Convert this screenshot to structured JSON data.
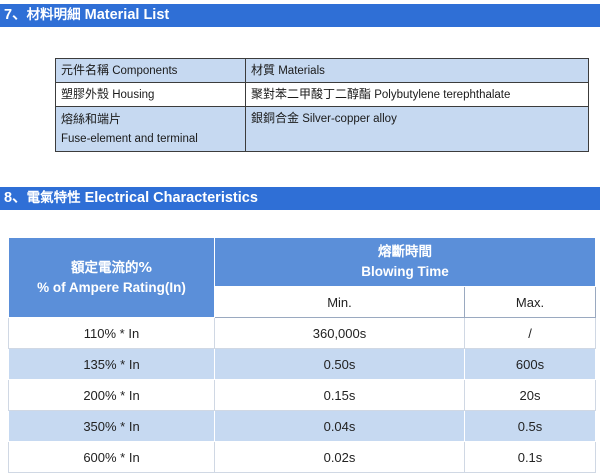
{
  "section7": {
    "num": "7、",
    "cn": "材料明細",
    "en": "Material List"
  },
  "materials": {
    "header": {
      "left_cn": "元件名稱",
      "left_en": "Components",
      "right_cn": "材質",
      "right_en": "Materials"
    },
    "rows": [
      {
        "left_cn": "塑膠外殼",
        "left_en": "Housing",
        "right_cn": "聚對苯二甲酸丁二醇酯",
        "right_en": "Polybutylene terephthalate"
      },
      {
        "left_cn": "熔絲和端片",
        "left_en": "Fuse-element and terminal",
        "right_cn": "銀銅合金",
        "right_en": "Silver-copper alloy"
      }
    ]
  },
  "section8": {
    "num": "8、",
    "cn": "電氣特性",
    "en": "Electrical Characteristics"
  },
  "electrical": {
    "col1_cn": "額定電流的%",
    "col1_en": "% of Ampere Rating(In)",
    "blow_cn": "熔斷時間",
    "blow_en": "Blowing Time",
    "min_label": "Min.",
    "max_label": "Max.",
    "rows": [
      {
        "rating": "110% * In",
        "min": "360,000s",
        "max": "/"
      },
      {
        "rating": "135% * In",
        "min": "0.50s",
        "max": "600s"
      },
      {
        "rating": "200% * In",
        "min": "0.15s",
        "max": "20s"
      },
      {
        "rating": "350% * In",
        "min": "0.04s",
        "max": "0.5s"
      },
      {
        "rating": "600% * In",
        "min": "0.02s",
        "max": "0.1s"
      }
    ]
  }
}
